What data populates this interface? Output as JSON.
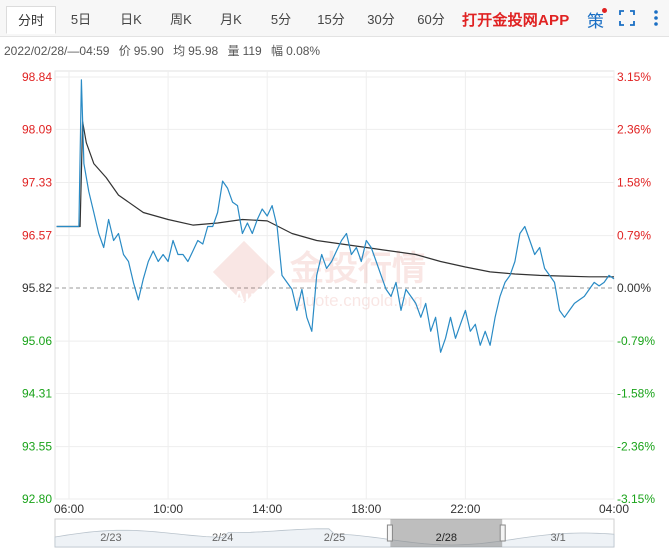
{
  "tabs": [
    {
      "label": "分时",
      "active": true
    },
    {
      "label": "5日"
    },
    {
      "label": "日K"
    },
    {
      "label": "周K"
    },
    {
      "label": "月K"
    },
    {
      "label": "5分"
    },
    {
      "label": "15分"
    },
    {
      "label": "30分"
    },
    {
      "label": "60分"
    }
  ],
  "promo_text": "打开金投网APP",
  "icons": {
    "ce": "策",
    "fullscreen": "fullscreen-icon",
    "more": "more-icon"
  },
  "info": {
    "datetime": "2022/02/28/—04:59",
    "price_label": "价",
    "price": "95.90",
    "avg_label": "均",
    "avg": "95.98",
    "vol_label": "量",
    "vol": "119",
    "chg_label": "幅",
    "chg": "0.08%"
  },
  "colors": {
    "price_line": "#2a8bc5",
    "avg_line": "#333333",
    "up": "#e02222",
    "down": "#1aa31a",
    "promo": "#e02222"
  },
  "watermark": {
    "text": "金投行情",
    "url": "quote.cngold.org",
    "logo": "Au"
  },
  "chart_data": {
    "type": "line",
    "y_left_ticks": [
      "98.84",
      "98.09",
      "97.33",
      "96.57",
      "95.82",
      "95.06",
      "94.31",
      "93.55",
      "92.80"
    ],
    "y_right_ticks": [
      "3.15%",
      "2.36%",
      "1.58%",
      "0.79%",
      "0.00%",
      "-0.79%",
      "-1.58%",
      "-2.36%",
      "-3.15%"
    ],
    "ylim": [
      92.8,
      98.84
    ],
    "baseline": 95.82,
    "x_ticks": [
      "06:00",
      "10:00",
      "14:00",
      "18:00",
      "22:00",
      "04:00"
    ],
    "x_tick_hours": [
      0,
      4,
      8,
      12,
      16,
      22
    ],
    "x_range_hours": [
      0,
      22
    ],
    "price_points": [
      [
        -0.5,
        96.7
      ],
      [
        0.4,
        96.7
      ],
      [
        0.5,
        98.8
      ],
      [
        0.6,
        97.6
      ],
      [
        0.8,
        97.2
      ],
      [
        1.0,
        96.9
      ],
      [
        1.2,
        96.6
      ],
      [
        1.4,
        96.4
      ],
      [
        1.6,
        96.8
      ],
      [
        1.8,
        96.5
      ],
      [
        2.0,
        96.6
      ],
      [
        2.2,
        96.3
      ],
      [
        2.4,
        96.2
      ],
      [
        2.6,
        95.9
      ],
      [
        2.8,
        95.65
      ],
      [
        3.0,
        95.95
      ],
      [
        3.2,
        96.2
      ],
      [
        3.4,
        96.35
      ],
      [
        3.6,
        96.2
      ],
      [
        3.8,
        96.3
      ],
      [
        4.0,
        96.2
      ],
      [
        4.2,
        96.5
      ],
      [
        4.4,
        96.3
      ],
      [
        4.6,
        96.3
      ],
      [
        4.8,
        96.2
      ],
      [
        5.0,
        96.35
      ],
      [
        5.2,
        96.5
      ],
      [
        5.4,
        96.45
      ],
      [
        5.6,
        96.7
      ],
      [
        5.8,
        96.7
      ],
      [
        6.0,
        96.9
      ],
      [
        6.2,
        97.35
      ],
      [
        6.4,
        97.25
      ],
      [
        6.6,
        97.05
      ],
      [
        6.8,
        97.0
      ],
      [
        7.0,
        96.6
      ],
      [
        7.2,
        96.75
      ],
      [
        7.4,
        96.6
      ],
      [
        7.6,
        96.8
      ],
      [
        7.8,
        96.95
      ],
      [
        8.0,
        96.85
      ],
      [
        8.2,
        97.0
      ],
      [
        8.4,
        96.7
      ],
      [
        8.6,
        96.0
      ],
      [
        8.8,
        95.9
      ],
      [
        9.0,
        95.8
      ],
      [
        9.2,
        95.5
      ],
      [
        9.4,
        95.8
      ],
      [
        9.6,
        95.4
      ],
      [
        9.8,
        95.2
      ],
      [
        10.0,
        96.0
      ],
      [
        10.2,
        96.3
      ],
      [
        10.4,
        96.1
      ],
      [
        10.6,
        96.2
      ],
      [
        10.8,
        96.35
      ],
      [
        11.0,
        96.5
      ],
      [
        11.2,
        96.6
      ],
      [
        11.4,
        96.3
      ],
      [
        11.6,
        96.4
      ],
      [
        11.8,
        96.2
      ],
      [
        12.0,
        96.5
      ],
      [
        12.2,
        96.4
      ],
      [
        12.4,
        96.2
      ],
      [
        12.6,
        96.0
      ],
      [
        12.8,
        95.8
      ],
      [
        13.0,
        95.7
      ],
      [
        13.2,
        95.9
      ],
      [
        13.4,
        95.5
      ],
      [
        13.6,
        95.8
      ],
      [
        13.8,
        95.7
      ],
      [
        14.0,
        95.6
      ],
      [
        14.2,
        95.4
      ],
      [
        14.4,
        95.6
      ],
      [
        14.6,
        95.2
      ],
      [
        14.8,
        95.4
      ],
      [
        15.0,
        94.9
      ],
      [
        15.2,
        95.1
      ],
      [
        15.4,
        95.4
      ],
      [
        15.6,
        95.1
      ],
      [
        15.8,
        95.3
      ],
      [
        16.0,
        95.5
      ],
      [
        16.2,
        95.2
      ],
      [
        16.4,
        95.3
      ],
      [
        16.6,
        95.0
      ],
      [
        16.8,
        95.2
      ],
      [
        17.0,
        95.0
      ],
      [
        17.2,
        95.4
      ],
      [
        17.4,
        95.7
      ],
      [
        17.6,
        95.9
      ],
      [
        17.8,
        96.0
      ],
      [
        18.0,
        96.2
      ],
      [
        18.2,
        96.6
      ],
      [
        18.4,
        96.7
      ],
      [
        18.6,
        96.5
      ],
      [
        18.8,
        96.3
      ],
      [
        19.0,
        96.4
      ],
      [
        19.2,
        96.1
      ],
      [
        19.4,
        96.0
      ],
      [
        19.6,
        95.9
      ],
      [
        19.8,
        95.5
      ],
      [
        20.0,
        95.4
      ],
      [
        20.2,
        95.5
      ],
      [
        20.4,
        95.6
      ],
      [
        20.6,
        95.65
      ],
      [
        20.8,
        95.7
      ],
      [
        21.0,
        95.8
      ],
      [
        21.2,
        95.9
      ],
      [
        21.4,
        95.85
      ],
      [
        21.6,
        95.9
      ],
      [
        21.8,
        96.0
      ],
      [
        22.0,
        95.95
      ]
    ],
    "avg_points": [
      [
        -0.5,
        96.7
      ],
      [
        0.45,
        96.7
      ],
      [
        0.55,
        98.2
      ],
      [
        0.7,
        97.9
      ],
      [
        1.0,
        97.6
      ],
      [
        1.5,
        97.4
      ],
      [
        2.0,
        97.15
      ],
      [
        3.0,
        96.9
      ],
      [
        4.0,
        96.8
      ],
      [
        5.0,
        96.72
      ],
      [
        6.0,
        96.75
      ],
      [
        7.0,
        96.8
      ],
      [
        8.0,
        96.78
      ],
      [
        9.0,
        96.6
      ],
      [
        10.0,
        96.5
      ],
      [
        11.0,
        96.45
      ],
      [
        12.0,
        96.4
      ],
      [
        13.0,
        96.35
      ],
      [
        14.0,
        96.3
      ],
      [
        15.0,
        96.2
      ],
      [
        16.0,
        96.12
      ],
      [
        17.0,
        96.05
      ],
      [
        18.0,
        96.02
      ],
      [
        19.0,
        96.0
      ],
      [
        20.0,
        95.99
      ],
      [
        21.0,
        95.98
      ],
      [
        22.0,
        95.98
      ]
    ]
  },
  "navigator": {
    "dates": [
      "2/23",
      "2/24",
      "2/25",
      "2/28",
      "3/1"
    ],
    "selected_index": 3
  }
}
